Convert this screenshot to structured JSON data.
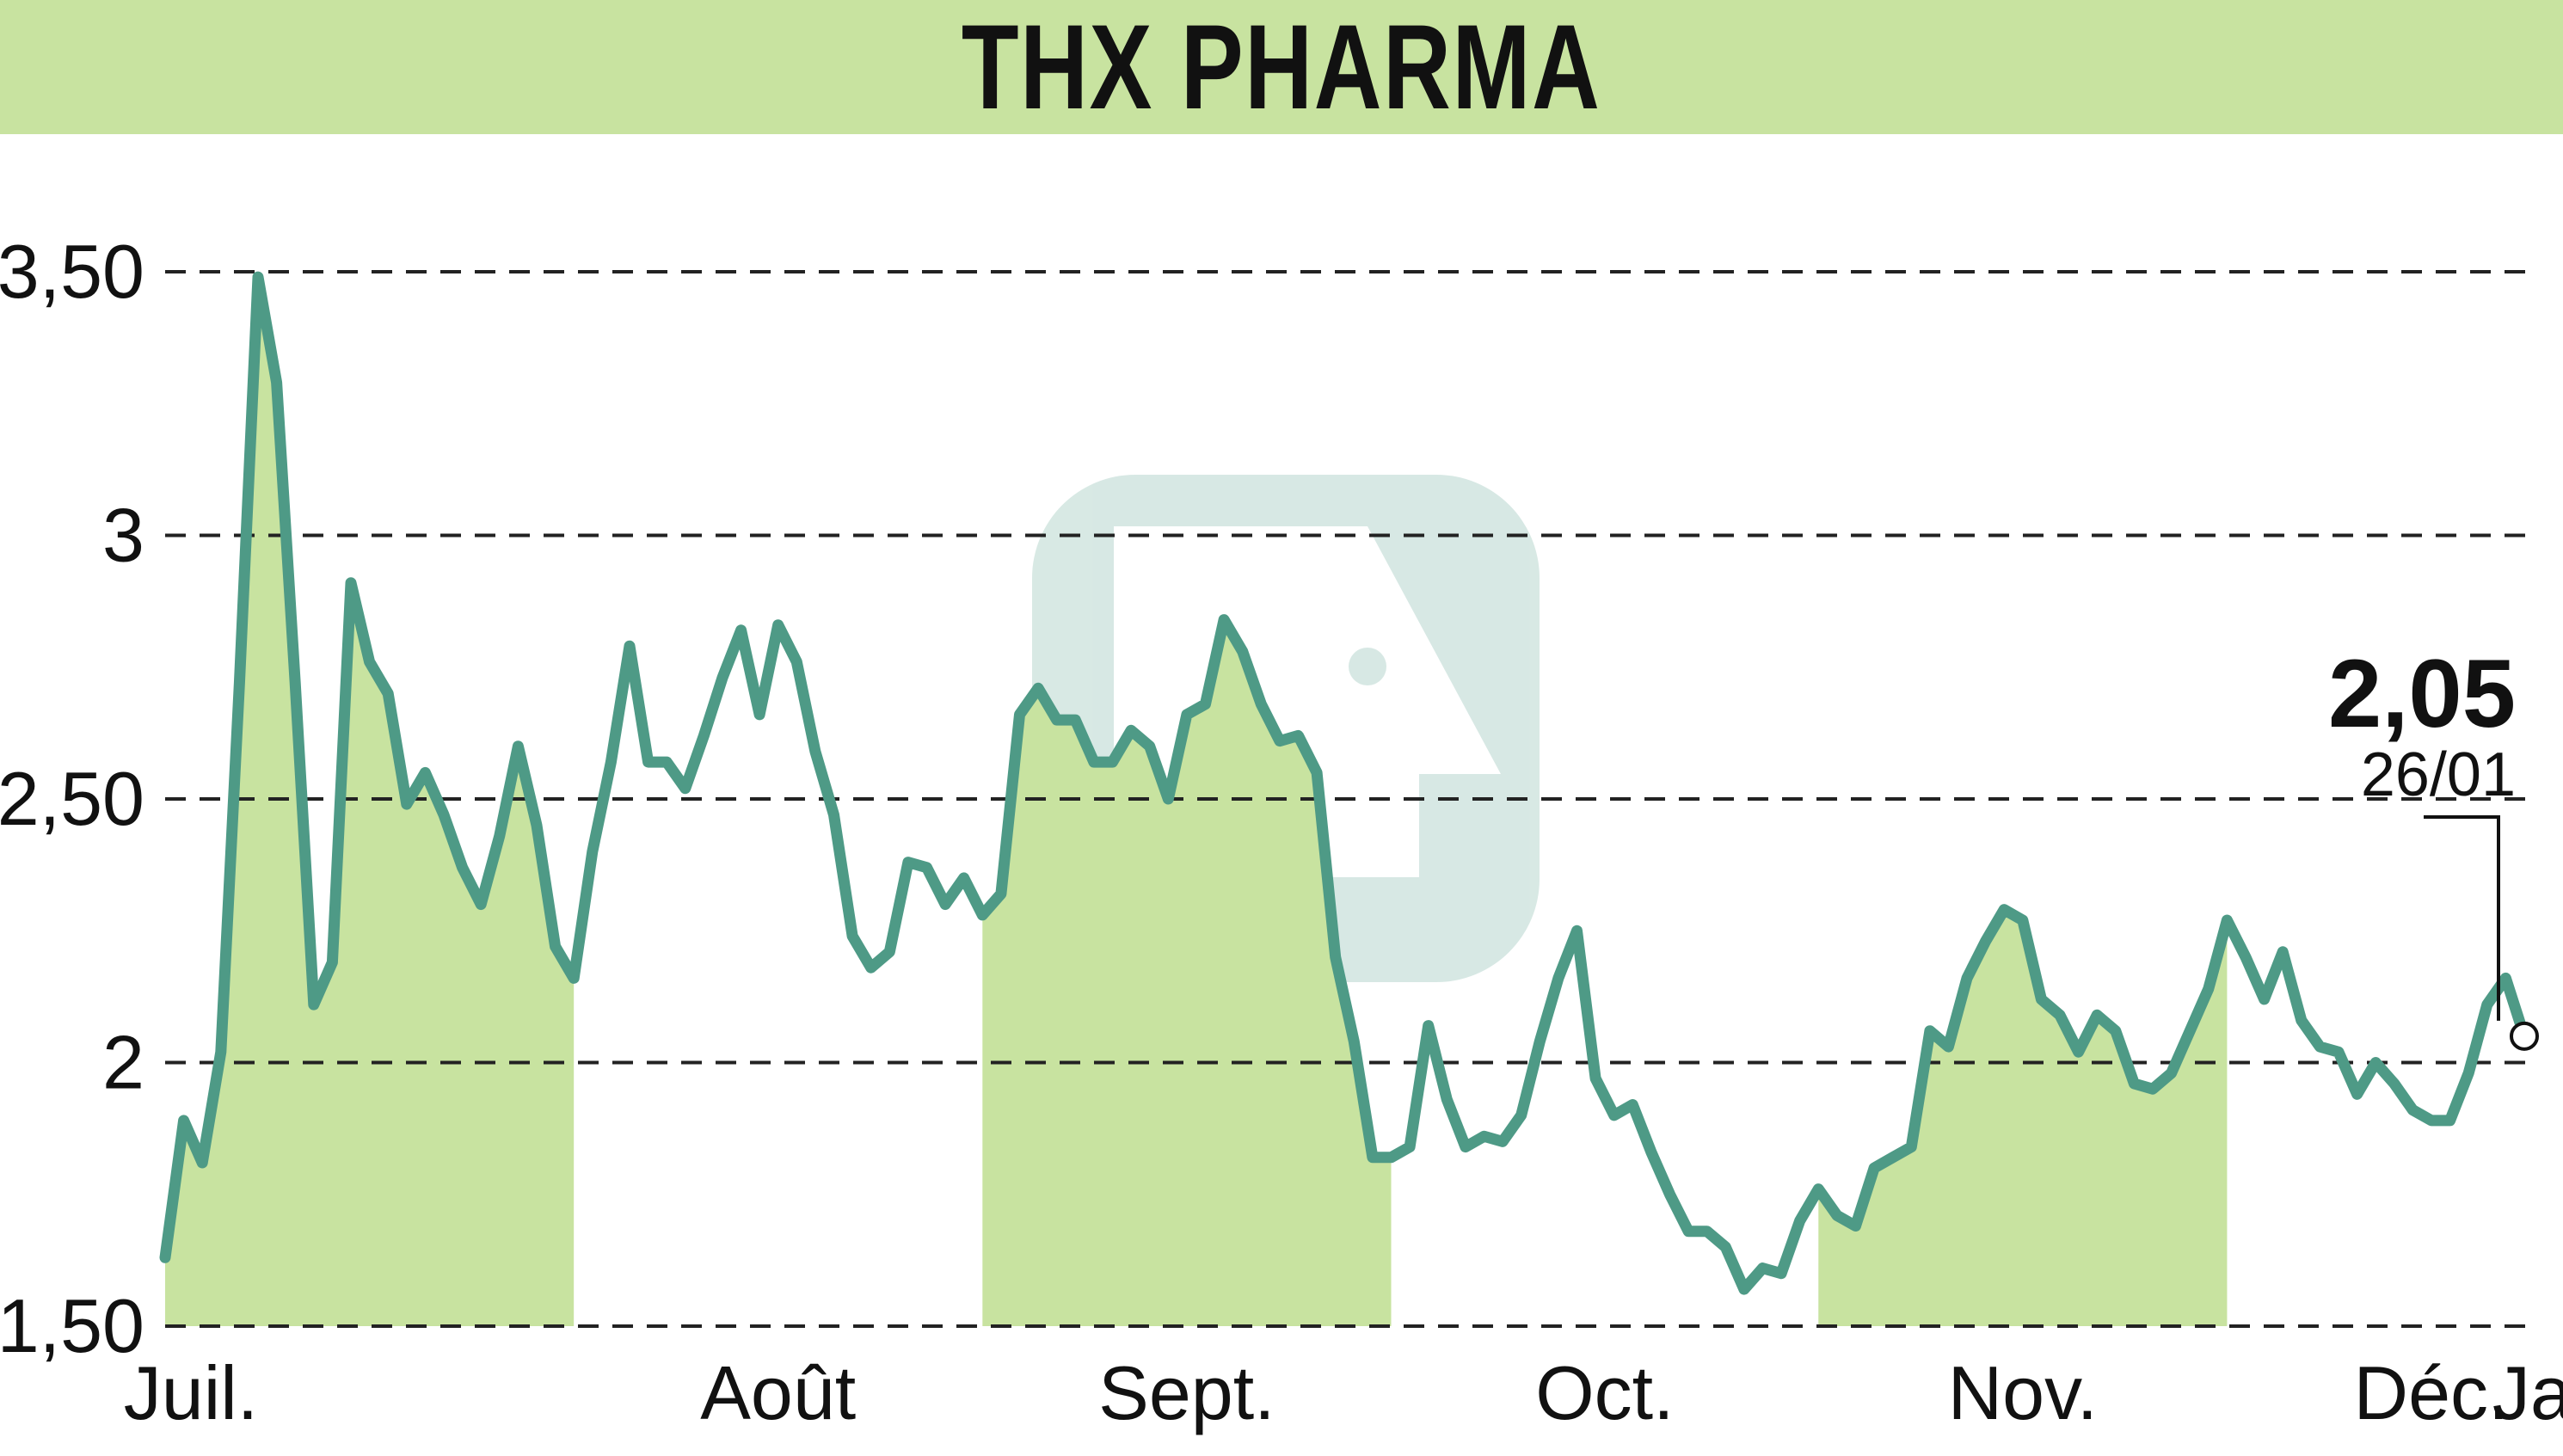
{
  "title": "THX PHARMA",
  "colors": {
    "header_bg": "#c8e3a0",
    "line": "#4e9a86",
    "fill": "#c8e3a0",
    "grid": "#222222",
    "watermark": "#4e9a86"
  },
  "watermark_icon": "boursier-logo-watermark",
  "chart_data": {
    "type": "line",
    "title": "THX PHARMA",
    "xlabel": "",
    "ylabel": "",
    "ylim": [
      1.5,
      3.5
    ],
    "yticks": [
      1.5,
      2.0,
      2.5,
      3.0,
      3.5
    ],
    "ytick_labels": [
      "1,50",
      "2",
      "2,50",
      "3",
      "3,50"
    ],
    "grid": true,
    "grid_style": "dashed",
    "months": [
      {
        "label": "Juil.",
        "start": 0
      },
      {
        "label": "Août",
        "start": 22
      },
      {
        "label": "Sept.",
        "start": 44
      },
      {
        "label": "Oct.",
        "start": 66
      },
      {
        "label": "Nov.",
        "start": 89
      },
      {
        "label": "Déc.",
        "start": 111
      },
      {
        "label": "Janv.",
        "start": 133
      }
    ],
    "shaded_months": [
      0,
      2,
      4,
      6
    ],
    "last_value": "2,05",
    "last_date": "26/01",
    "series": [
      {
        "values": [
          1.63,
          1.89,
          1.81,
          2.02,
          2.72,
          3.49,
          3.29,
          2.72,
          2.11,
          2.19,
          2.91,
          2.76,
          2.7,
          2.49,
          2.55,
          2.47,
          2.37,
          2.3,
          2.43,
          2.6,
          2.45,
          2.22,
          2.16,
          2.4,
          2.57,
          2.79,
          2.57,
          2.57,
          2.52,
          2.62,
          2.73,
          2.82,
          2.66,
          2.83,
          2.76,
          2.59,
          2.47,
          2.24,
          2.18,
          2.21,
          2.38,
          2.37,
          2.3,
          2.35,
          2.28,
          2.32,
          2.66,
          2.71,
          2.65,
          2.65,
          2.57,
          2.57,
          2.63,
          2.6,
          2.5,
          2.66,
          2.68,
          2.84,
          2.78,
          2.68,
          2.61,
          2.62,
          2.55,
          2.2,
          2.04,
          1.82,
          1.82,
          1.84,
          2.07,
          1.93,
          1.84,
          1.86,
          1.85,
          1.9,
          2.04,
          2.16,
          2.25,
          1.97,
          1.9,
          1.92,
          1.83,
          1.75,
          1.68,
          1.68,
          1.65,
          1.57,
          1.61,
          1.6,
          1.7,
          1.76,
          1.71,
          1.69,
          1.8,
          1.82,
          1.84,
          2.06,
          2.03,
          2.16,
          2.23,
          2.29,
          2.27,
          2.12,
          2.09,
          2.02,
          2.09,
          2.06,
          1.96,
          1.95,
          1.98,
          2.06,
          2.14,
          2.27,
          2.2,
          2.12,
          2.21,
          2.08,
          2.03,
          2.02,
          1.94,
          2.0,
          1.96,
          1.91,
          1.89,
          1.89,
          1.98,
          2.11,
          2.16,
          2.05
        ]
      }
    ]
  }
}
